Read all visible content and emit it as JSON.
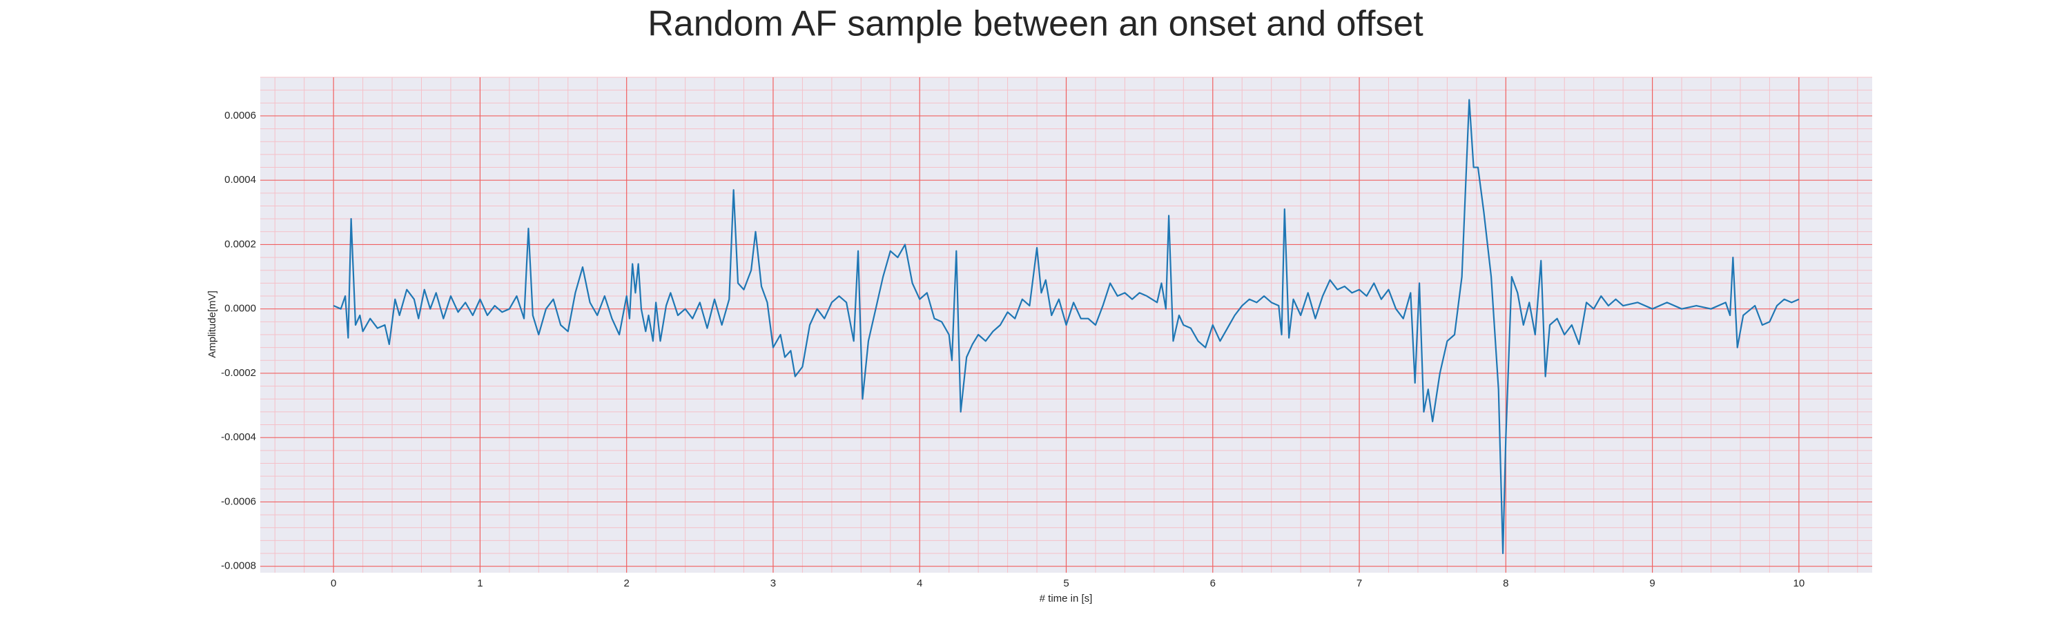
{
  "chart_data": {
    "type": "line",
    "title": "Random AF sample between an onset and offset",
    "x_label": "# time in [s]",
    "y_label": "Amplitude[mV]",
    "color": "#1f77b4",
    "grid": true,
    "minor_grid": true,
    "xlim": [
      -0.5,
      10.5
    ],
    "ylim": [
      -0.00082,
      0.00072
    ],
    "xticks": [
      0,
      1,
      2,
      3,
      4,
      5,
      6,
      7,
      8,
      9,
      10
    ],
    "yticks": [
      -0.0008,
      -0.0006,
      -0.0004,
      -0.0002,
      {
        "value": 0,
        "label": "0.0000"
      },
      0.0002,
      0.0004,
      0.0006
    ],
    "x": [
      0,
      0.05,
      0.08,
      0.1,
      0.12,
      0.15,
      0.18,
      0.2,
      0.25,
      0.3,
      0.35,
      0.38,
      0.42,
      0.45,
      0.5,
      0.55,
      0.58,
      0.62,
      0.66,
      0.7,
      0.75,
      0.8,
      0.85,
      0.9,
      0.95,
      1,
      1.05,
      1.1,
      1.15,
      1.2,
      1.25,
      1.3,
      1.33,
      1.36,
      1.4,
      1.45,
      1.5,
      1.55,
      1.6,
      1.65,
      1.7,
      1.75,
      1.8,
      1.85,
      1.9,
      1.95,
      2,
      2.02,
      2.04,
      2.06,
      2.08,
      2.1,
      2.13,
      2.15,
      2.18,
      2.2,
      2.23,
      2.27,
      2.3,
      2.35,
      2.4,
      2.45,
      2.5,
      2.55,
      2.6,
      2.65,
      2.7,
      2.73,
      2.76,
      2.8,
      2.85,
      2.88,
      2.92,
      2.96,
      3,
      3.05,
      3.08,
      3.12,
      3.15,
      3.2,
      3.25,
      3.3,
      3.35,
      3.4,
      3.45,
      3.5,
      3.55,
      3.58,
      3.61,
      3.65,
      3.7,
      3.75,
      3.8,
      3.85,
      3.9,
      3.95,
      4,
      4.05,
      4.1,
      4.15,
      4.2,
      4.22,
      4.25,
      4.28,
      4.32,
      4.36,
      4.4,
      4.45,
      4.5,
      4.55,
      4.6,
      4.65,
      4.7,
      4.75,
      4.8,
      4.83,
      4.86,
      4.9,
      4.95,
      5,
      5.05,
      5.1,
      5.15,
      5.2,
      5.25,
      5.3,
      5.35,
      5.4,
      5.45,
      5.5,
      5.55,
      5.62,
      5.65,
      5.68,
      5.7,
      5.73,
      5.77,
      5.8,
      5.85,
      5.9,
      5.95,
      6,
      6.05,
      6.1,
      6.15,
      6.2,
      6.25,
      6.3,
      6.35,
      6.4,
      6.45,
      6.47,
      6.49,
      6.52,
      6.55,
      6.6,
      6.65,
      6.7,
      6.75,
      6.8,
      6.85,
      6.9,
      6.95,
      7,
      7.05,
      7.1,
      7.15,
      7.2,
      7.25,
      7.3,
      7.35,
      7.38,
      7.41,
      7.44,
      7.47,
      7.5,
      7.55,
      7.6,
      7.65,
      7.7,
      7.75,
      7.78,
      7.81,
      7.85,
      7.9,
      7.95,
      7.98,
      8,
      8.04,
      8.08,
      8.12,
      8.16,
      8.2,
      8.24,
      8.27,
      8.3,
      8.35,
      8.4,
      8.45,
      8.5,
      8.55,
      8.6,
      8.65,
      8.7,
      8.75,
      8.8,
      8.9,
      9,
      9.1,
      9.2,
      9.3,
      9.4,
      9.5,
      9.53,
      9.55,
      9.58,
      9.62,
      9.7,
      9.75,
      9.8,
      9.85,
      9.9,
      9.95,
      10
    ],
    "values": [
      1e-05,
      0,
      4e-05,
      -9e-05,
      0.00028,
      -5e-05,
      -2e-05,
      -7e-05,
      -3e-05,
      -6e-05,
      -5e-05,
      -0.00011,
      3e-05,
      -2e-05,
      6e-05,
      3e-05,
      -3e-05,
      6e-05,
      0,
      5e-05,
      -3e-05,
      4e-05,
      -1e-05,
      2e-05,
      -2e-05,
      3e-05,
      -2e-05,
      1e-05,
      -1e-05,
      0,
      4e-05,
      -3e-05,
      0.00025,
      -2e-05,
      -8e-05,
      0,
      3e-05,
      -5e-05,
      -7e-05,
      5e-05,
      0.00013,
      2e-05,
      -2e-05,
      4e-05,
      -3e-05,
      -8e-05,
      4e-05,
      -3e-05,
      0.00014,
      5e-05,
      0.00014,
      0,
      -7e-05,
      -2e-05,
      -0.0001,
      2e-05,
      -0.0001,
      1e-05,
      5e-05,
      -2e-05,
      0,
      -3e-05,
      2e-05,
      -6e-05,
      3e-05,
      -5e-05,
      3e-05,
      0.00037,
      8e-05,
      6e-05,
      0.00012,
      0.00024,
      7e-05,
      2e-05,
      -0.00012,
      -8e-05,
      -0.00015,
      -0.00013,
      -0.00021,
      -0.00018,
      -5e-05,
      0,
      -3e-05,
      2e-05,
      4e-05,
      2e-05,
      -0.0001,
      0.00018,
      -0.00028,
      -0.0001,
      0,
      0.0001,
      0.00018,
      0.00016,
      0.0002,
      8e-05,
      3e-05,
      5e-05,
      -3e-05,
      -4e-05,
      -8e-05,
      -0.00016,
      0.00018,
      -0.00032,
      -0.00015,
      -0.00011,
      -8e-05,
      -0.0001,
      -7e-05,
      -5e-05,
      -1e-05,
      -3e-05,
      3e-05,
      1e-05,
      0.00019,
      5e-05,
      9e-05,
      -2e-05,
      3e-05,
      -5e-05,
      2e-05,
      -3e-05,
      -3e-05,
      -5e-05,
      1e-05,
      8e-05,
      4e-05,
      5e-05,
      3e-05,
      5e-05,
      4e-05,
      2e-05,
      8e-05,
      0,
      0.00029,
      -0.0001,
      -2e-05,
      -5e-05,
      -6e-05,
      -0.0001,
      -0.00012,
      -5e-05,
      -0.0001,
      -6e-05,
      -2e-05,
      1e-05,
      3e-05,
      2e-05,
      4e-05,
      2e-05,
      1e-05,
      -8e-05,
      0.00031,
      -9e-05,
      3e-05,
      -2e-05,
      5e-05,
      -3e-05,
      4e-05,
      9e-05,
      6e-05,
      7e-05,
      5e-05,
      6e-05,
      4e-05,
      8e-05,
      3e-05,
      6e-05,
      0,
      -3e-05,
      5e-05,
      -0.00023,
      8e-05,
      -0.00032,
      -0.00025,
      -0.00035,
      -0.0002,
      -0.0001,
      -8e-05,
      0.0001,
      0.00065,
      0.00044,
      0.00044,
      0.0003,
      0.0001,
      -0.00025,
      -0.00076,
      -0.0004,
      0.0001,
      5e-05,
      -5e-05,
      2e-05,
      -8e-05,
      0.00015,
      -0.00021,
      -5e-05,
      -3e-05,
      -8e-05,
      -5e-05,
      -0.00011,
      2e-05,
      0,
      4e-05,
      1e-05,
      3e-05,
      1e-05,
      2e-05,
      0,
      2e-05,
      0,
      1e-05,
      0,
      2e-05,
      -2e-05,
      0.00016,
      -0.00012,
      -2e-05,
      1e-05,
      -5e-05,
      -4e-05,
      1e-05,
      3e-05,
      2e-05,
      3e-05
    ]
  }
}
